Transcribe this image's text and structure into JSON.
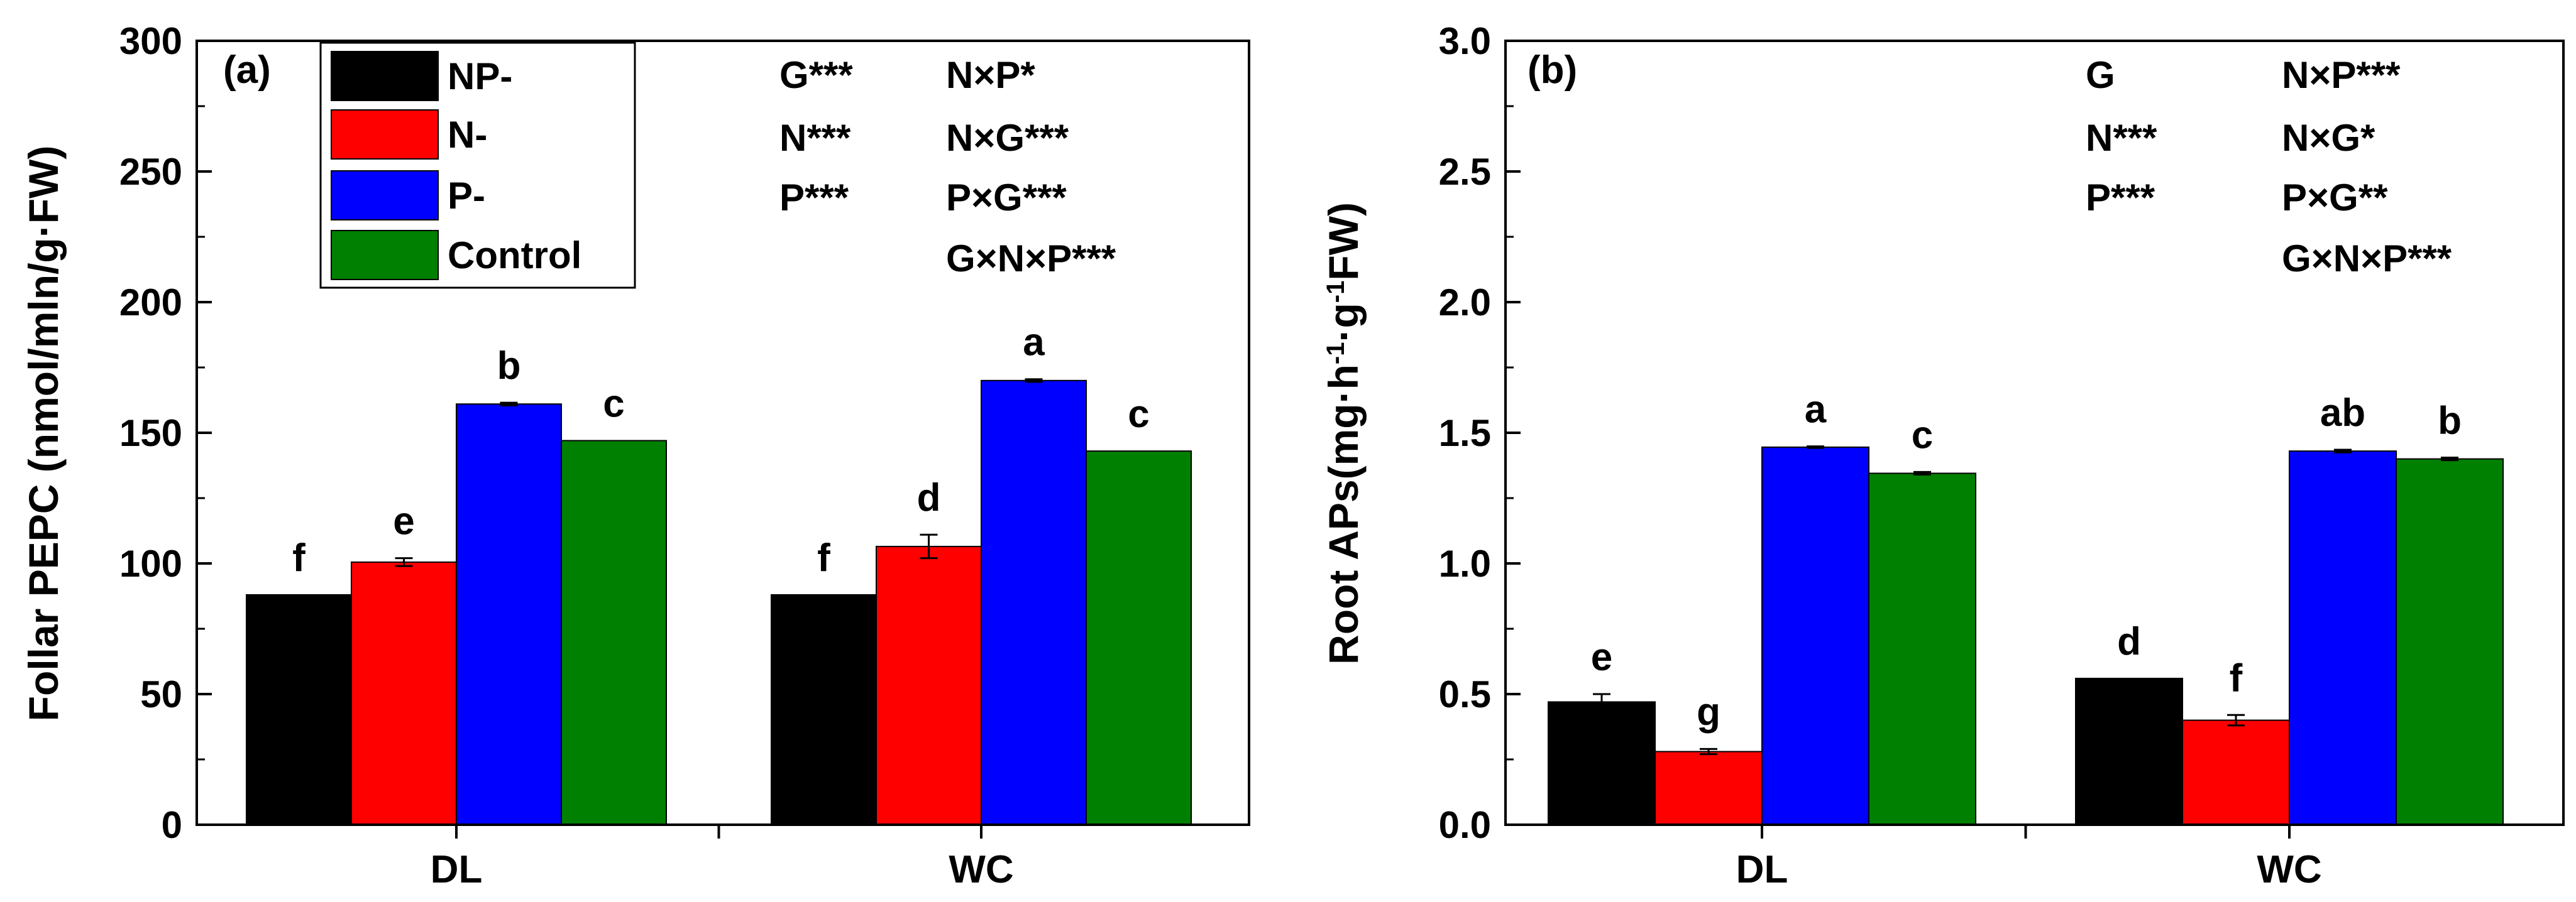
{
  "chart_data": [
    {
      "type": "bar",
      "panel_label": "(a)",
      "title": "",
      "xlabel": "",
      "ylabel": "Follar PEPC (nmol/mln/g·FW)",
      "ylim": [
        0,
        300
      ],
      "yticks": [
        0,
        50,
        100,
        150,
        200,
        250,
        300
      ],
      "ytick_labels": [
        "0",
        "50",
        "100",
        "150",
        "200",
        "250",
        "300"
      ],
      "categories": [
        "DL",
        "WC"
      ],
      "series": [
        {
          "name": "NP-",
          "color": "#000000",
          "values": [
            88,
            88
          ],
          "errors": [
            0,
            0
          ],
          "letters": [
            "f",
            "f"
          ]
        },
        {
          "name": "N-",
          "color": "#ff0000",
          "values": [
            100.5,
            106.5
          ],
          "errors": [
            1.5,
            4.5
          ],
          "letters": [
            "e",
            "d"
          ]
        },
        {
          "name": "P-",
          "color": "#0000ff",
          "values": [
            161,
            170
          ],
          "errors": [
            0.5,
            0.5
          ],
          "letters": [
            "b",
            "a"
          ]
        },
        {
          "name": "Control",
          "color": "#008000",
          "values": [
            147,
            143
          ],
          "errors": [
            0,
            0
          ],
          "letters": [
            "c",
            "c"
          ]
        }
      ],
      "legend": {
        "position": "top-left",
        "entries": [
          "NP-",
          "N-",
          "P-",
          "Control"
        ]
      },
      "annotations": {
        "col1": [
          "G***",
          "N***",
          "P***"
        ],
        "col2": [
          "N×P*",
          "N×G***",
          "P×G***",
          "G×N×P***"
        ]
      }
    },
    {
      "type": "bar",
      "panel_label": "(b)",
      "title": "",
      "xlabel": "",
      "ylabel_base": "Root APs(mg·h",
      "ylabel_sup1": "-1",
      "ylabel_mid": "·g",
      "ylabel_sup2": "-1",
      "ylabel_end": "FW)",
      "ylim": [
        0,
        3.0
      ],
      "yticks": [
        0,
        0.5,
        1.0,
        1.5,
        2.0,
        2.5,
        3.0
      ],
      "ytick_labels": [
        "0.0",
        "0.5",
        "1.0",
        "1.5",
        "2.0",
        "2.5",
        "3.0"
      ],
      "categories": [
        "DL",
        "WC"
      ],
      "series": [
        {
          "name": "NP-",
          "color": "#000000",
          "values": [
            0.47,
            0.56
          ],
          "errors": [
            0.03,
            0
          ],
          "letters": [
            "e",
            "d"
          ]
        },
        {
          "name": "N-",
          "color": "#ff0000",
          "values": [
            0.28,
            0.4
          ],
          "errors": [
            0.01,
            0.02
          ],
          "letters": [
            "g",
            "f"
          ]
        },
        {
          "name": "P-",
          "color": "#0000ff",
          "values": [
            1.445,
            1.43
          ],
          "errors": [
            0.003,
            0.005
          ],
          "letters": [
            "a",
            "ab"
          ]
        },
        {
          "name": "Control",
          "color": "#008000",
          "values": [
            1.345,
            1.4
          ],
          "errors": [
            0.005,
            0.005
          ],
          "letters": [
            "c",
            "b"
          ]
        }
      ],
      "annotations": {
        "col1": [
          "G",
          "N***",
          "P***"
        ],
        "col2": [
          "N×P***",
          "N×G*",
          "P×G**",
          "G×N×P***"
        ]
      }
    }
  ]
}
